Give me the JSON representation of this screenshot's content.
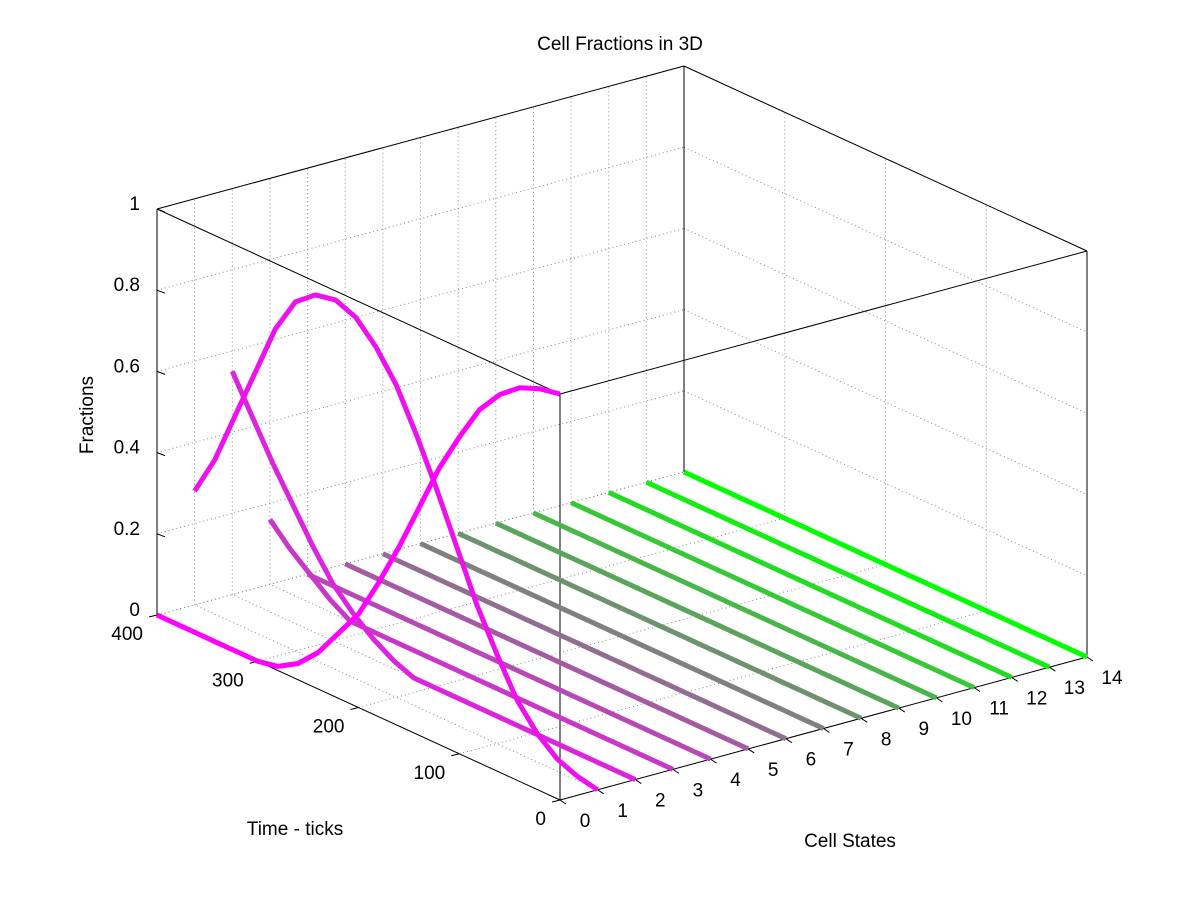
{
  "chart_data": {
    "type": "line3d",
    "title": "Cell Fractions in 3D",
    "xlabel": "Cell States",
    "ylabel": "Time - ticks",
    "zlabel": "Fractions",
    "x": [
      0,
      20,
      40,
      60,
      80,
      100,
      120,
      140,
      160,
      180,
      200,
      220,
      240,
      260,
      280,
      300,
      320,
      340,
      360,
      380,
      400
    ],
    "series": [
      {
        "cell_state": 0,
        "color": "#ff00ff",
        "values": [
          1,
          0.99,
          0.97,
          0.93,
          0.87,
          0.78,
          0.68,
          0.56,
          0.44,
          0.33,
          0.23,
          0.16,
          0.09,
          0.04,
          0.01,
          0,
          0,
          0,
          0,
          0,
          0
        ]
      },
      {
        "cell_state": 1,
        "color": "#ed12ed",
        "values": [
          0,
          0.01,
          0.03,
          0.07,
          0.13,
          0.22,
          0.32,
          0.44,
          0.56,
          0.67,
          0.77,
          0.84,
          0.89,
          0.91,
          0.9,
          0.86,
          0.77,
          0.64,
          0.51,
          0.38,
          0.28
        ]
      },
      {
        "cell_state": 2,
        "color": "#db24db",
        "values": [
          0,
          0,
          0,
          0,
          0,
          0,
          0,
          0,
          0,
          0,
          0,
          0,
          0.02,
          0.05,
          0.09,
          0.14,
          0.21,
          0.29,
          0.37,
          0.46,
          0.55
        ]
      },
      {
        "cell_state": 3,
        "color": "#c837c8",
        "values": [
          0,
          0,
          0,
          0,
          0,
          0,
          0,
          0,
          0,
          0,
          0,
          0,
          0,
          0,
          0,
          0,
          0,
          0.03,
          0.07,
          0.11,
          0.16
        ]
      },
      {
        "cell_state": 4,
        "color": "#b649b6",
        "values": [
          0,
          0,
          0,
          0,
          0,
          0,
          0,
          0,
          0,
          0,
          0,
          0,
          0,
          0,
          0,
          0,
          0,
          0,
          0,
          0,
          0
        ]
      },
      {
        "cell_state": 5,
        "color": "#a45ba4",
        "values": [
          0,
          0,
          0,
          0,
          0,
          0,
          0,
          0,
          0,
          0,
          0,
          0,
          0,
          0,
          0,
          0,
          0,
          0,
          0,
          0,
          0
        ]
      },
      {
        "cell_state": 6,
        "color": "#926d92",
        "values": [
          0,
          0,
          0,
          0,
          0,
          0,
          0,
          0,
          0,
          0,
          0,
          0,
          0,
          0,
          0,
          0,
          0,
          0,
          0,
          0,
          0
        ]
      },
      {
        "cell_state": 7,
        "color": "#7f807f",
        "values": [
          0,
          0,
          0,
          0,
          0,
          0,
          0,
          0,
          0,
          0,
          0,
          0,
          0,
          0,
          0,
          0,
          0,
          0,
          0,
          0,
          0
        ]
      },
      {
        "cell_state": 8,
        "color": "#6d926d",
        "values": [
          0,
          0,
          0,
          0,
          0,
          0,
          0,
          0,
          0,
          0,
          0,
          0,
          0,
          0,
          0,
          0,
          0,
          0,
          0,
          0,
          0
        ]
      },
      {
        "cell_state": 9,
        "color": "#5ba45b",
        "values": [
          0,
          0,
          0,
          0,
          0,
          0,
          0,
          0,
          0,
          0,
          0,
          0,
          0,
          0,
          0,
          0,
          0,
          0,
          0,
          0,
          0
        ]
      },
      {
        "cell_state": 10,
        "color": "#49b649",
        "values": [
          0,
          0,
          0,
          0,
          0,
          0,
          0,
          0,
          0,
          0,
          0,
          0,
          0,
          0,
          0,
          0,
          0,
          0,
          0,
          0,
          0
        ]
      },
      {
        "cell_state": 11,
        "color": "#37c837",
        "values": [
          0,
          0,
          0,
          0,
          0,
          0,
          0,
          0,
          0,
          0,
          0,
          0,
          0,
          0,
          0,
          0,
          0,
          0,
          0,
          0,
          0
        ]
      },
      {
        "cell_state": 12,
        "color": "#24db24",
        "values": [
          0,
          0,
          0,
          0,
          0,
          0,
          0,
          0,
          0,
          0,
          0,
          0,
          0,
          0,
          0,
          0,
          0,
          0,
          0,
          0,
          0
        ]
      },
      {
        "cell_state": 13,
        "color": "#12ed12",
        "values": [
          0,
          0,
          0,
          0,
          0,
          0,
          0,
          0,
          0,
          0,
          0,
          0,
          0,
          0,
          0,
          0,
          0,
          0,
          0,
          0,
          0
        ]
      },
      {
        "cell_state": 14,
        "color": "#00ff00",
        "values": [
          0,
          0,
          0,
          0,
          0,
          0,
          0,
          0,
          0,
          0,
          0,
          0,
          0,
          0,
          0,
          0,
          0,
          0,
          0,
          0,
          0
        ]
      }
    ],
    "xlim": [
      0,
      14
    ],
    "xticks": [
      0,
      1,
      2,
      3,
      4,
      5,
      6,
      7,
      8,
      9,
      10,
      11,
      12,
      13,
      14
    ],
    "ylim": [
      0,
      400
    ],
    "yticks": [
      0,
      100,
      200,
      300,
      400
    ],
    "zlim": [
      0,
      1
    ],
    "zticks": [
      0,
      0.2,
      0.4,
      0.6,
      0.8,
      1
    ],
    "grid": true
  }
}
